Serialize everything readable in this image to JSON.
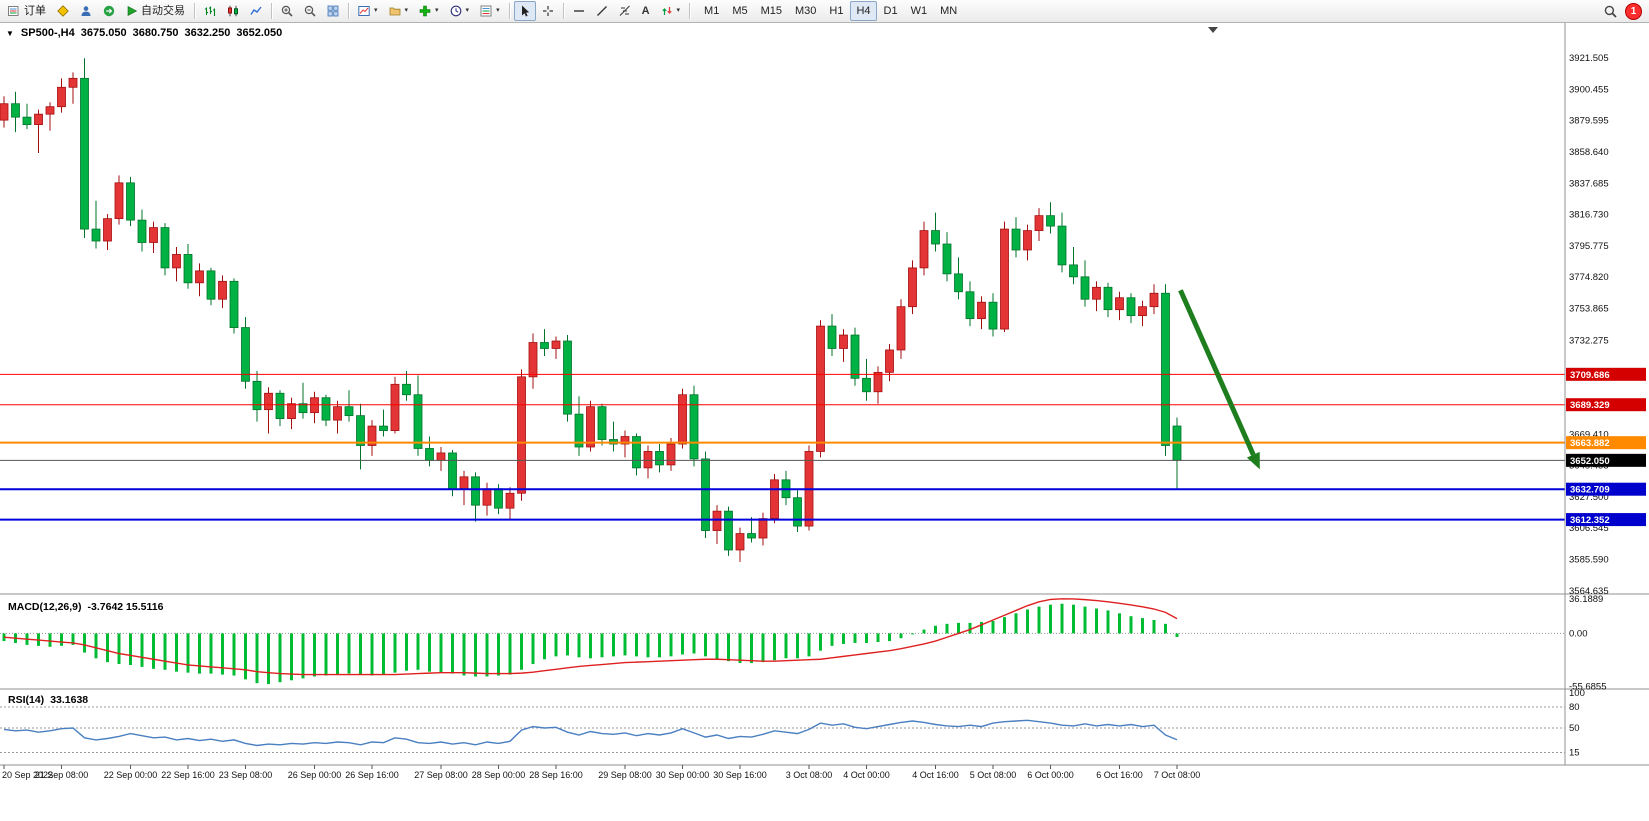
{
  "toolbar": {
    "new_order_label": "订单",
    "autotrading_label": "自动交易",
    "text_tool_label": "A",
    "timeframes": [
      "M1",
      "M5",
      "M15",
      "M30",
      "H1",
      "H4",
      "D1",
      "W1",
      "MN"
    ],
    "active_timeframe": "H4",
    "notification_count": "1"
  },
  "chart": {
    "symbol_period": "SP500-,H4",
    "open": "3675.050",
    "high": "3680.750",
    "low": "3632.250",
    "close": "3652.050"
  },
  "indicators": {
    "macd": {
      "label": "MACD(12,26,9)",
      "values": "-3.7642 15.5116",
      "axis_labels": [
        "36.1889",
        "0.00",
        "-55.6855"
      ],
      "axis_values": [
        36.1889,
        0,
        -55.6855
      ]
    },
    "rsi": {
      "label": "RSI(14)",
      "values": "33.1638",
      "axis_labels": [
        "100",
        "80",
        "50",
        "15"
      ],
      "axis_values": [
        100,
        80,
        50,
        15
      ]
    }
  },
  "colors": {
    "candle_up": "#e33535",
    "candle_up_stroke": "#a30f0f",
    "candle_down": "#00b244",
    "candle_down_stroke": "#00742b",
    "macd_histogram": "#00bc32",
    "macd_signal": "#e02020",
    "rsi_line": "#4a7fc1",
    "level_red": "#ff0000",
    "level_orange": "#ff8a00",
    "level_gray": "#555555",
    "level_blue": "#0000dd",
    "tag_red": "#d40000",
    "tag_orange": "#ff8a00",
    "tag_black": "#000000",
    "tag_blue": "#0000cc",
    "arrow_green": "#1e7e1e",
    "axis_border": "#909090",
    "axis_text": "#111111",
    "dashed_level": "#999999"
  },
  "chart_data": {
    "type": "candlestick",
    "symbol": "SP500-",
    "timeframe": "H4",
    "price_range": [
      3564.5,
      3929
    ],
    "candles": [
      [
        3880,
        3896,
        3875,
        3891
      ],
      [
        3891,
        3899,
        3872,
        3882
      ],
      [
        3882,
        3891,
        3874,
        3877
      ],
      [
        3877,
        3887,
        3858,
        3884
      ],
      [
        3884,
        3892,
        3873,
        3889
      ],
      [
        3889,
        3908,
        3885,
        3902
      ],
      [
        3902,
        3912,
        3891,
        3908
      ],
      [
        3908,
        3921.5,
        3801,
        3807
      ],
      [
        3807,
        3826,
        3794,
        3799
      ],
      [
        3799,
        3817,
        3793,
        3814
      ],
      [
        3814,
        3843,
        3810,
        3838
      ],
      [
        3838,
        3842,
        3809,
        3813
      ],
      [
        3813,
        3820,
        3792,
        3798
      ],
      [
        3798,
        3812,
        3791,
        3808
      ],
      [
        3808,
        3811,
        3776,
        3781
      ],
      [
        3781,
        3795,
        3772,
        3790
      ],
      [
        3790,
        3797,
        3767,
        3771
      ],
      [
        3771,
        3784,
        3762,
        3779
      ],
      [
        3779,
        3781,
        3756,
        3760
      ],
      [
        3760,
        3776,
        3754,
        3772
      ],
      [
        3772,
        3774,
        3737,
        3741
      ],
      [
        3741,
        3748,
        3700,
        3705
      ],
      [
        3705,
        3712,
        3678,
        3686
      ],
      [
        3686,
        3701,
        3670,
        3697
      ],
      [
        3697,
        3699,
        3675,
        3680
      ],
      [
        3680,
        3694,
        3673,
        3690
      ],
      [
        3690,
        3704,
        3680,
        3684
      ],
      [
        3684,
        3698,
        3677,
        3694
      ],
      [
        3694,
        3696,
        3675,
        3679
      ],
      [
        3679,
        3692,
        3670,
        3688
      ],
      [
        3688,
        3699,
        3678,
        3682
      ],
      [
        3682,
        3690,
        3646,
        3662
      ],
      [
        3662,
        3679,
        3655,
        3675
      ],
      [
        3675,
        3686,
        3668,
        3672
      ],
      [
        3672,
        3708,
        3670,
        3703
      ],
      [
        3703,
        3712,
        3692,
        3696
      ],
      [
        3696,
        3709,
        3655,
        3660
      ],
      [
        3660,
        3668,
        3648,
        3652
      ],
      [
        3652,
        3661,
        3645,
        3657
      ],
      [
        3657,
        3659,
        3628,
        3633
      ],
      [
        3633,
        3645,
        3622,
        3641
      ],
      [
        3641,
        3644,
        3611,
        3622
      ],
      [
        3622,
        3637,
        3615,
        3633
      ],
      [
        3633,
        3636,
        3616,
        3620
      ],
      [
        3620,
        3634,
        3612,
        3630
      ],
      [
        3630,
        3713,
        3625,
        3708
      ],
      [
        3708,
        3737,
        3700,
        3731
      ],
      [
        3731,
        3740,
        3722,
        3727
      ],
      [
        3727,
        3735,
        3720,
        3732
      ],
      [
        3732,
        3736,
        3678,
        3683
      ],
      [
        3683,
        3695,
        3655,
        3661
      ],
      [
        3661,
        3692,
        3658,
        3688
      ],
      [
        3688,
        3690,
        3662,
        3666
      ],
      [
        3666,
        3678,
        3658,
        3663
      ],
      [
        3663,
        3672,
        3654,
        3668
      ],
      [
        3668,
        3670,
        3642,
        3647
      ],
      [
        3647,
        3662,
        3640,
        3658
      ],
      [
        3658,
        3663,
        3644,
        3649
      ],
      [
        3649,
        3667,
        3645,
        3663
      ],
      [
        3663,
        3700,
        3660,
        3696
      ],
      [
        3696,
        3702,
        3648,
        3653
      ],
      [
        3653,
        3658,
        3600,
        3605
      ],
      [
        3605,
        3622,
        3596,
        3618
      ],
      [
        3618,
        3621,
        3588,
        3592
      ],
      [
        3592,
        3607,
        3584,
        3603
      ],
      [
        3603,
        3614,
        3597,
        3600
      ],
      [
        3600,
        3617,
        3595,
        3613
      ],
      [
        3613,
        3643,
        3610,
        3639
      ],
      [
        3639,
        3645,
        3622,
        3627
      ],
      [
        3627,
        3632,
        3604,
        3608
      ],
      [
        3608,
        3662,
        3605,
        3658
      ],
      [
        3658,
        3746,
        3654,
        3742
      ],
      [
        3742,
        3750,
        3722,
        3727
      ],
      [
        3727,
        3740,
        3718,
        3736
      ],
      [
        3736,
        3741,
        3702,
        3707
      ],
      [
        3707,
        3720,
        3692,
        3698
      ],
      [
        3698,
        3715,
        3690,
        3711
      ],
      [
        3711,
        3730,
        3705,
        3726
      ],
      [
        3726,
        3760,
        3720,
        3755
      ],
      [
        3755,
        3786,
        3750,
        3781
      ],
      [
        3781,
        3812,
        3776,
        3806
      ],
      [
        3806,
        3818,
        3792,
        3797
      ],
      [
        3797,
        3805,
        3772,
        3777
      ],
      [
        3777,
        3788,
        3760,
        3765
      ],
      [
        3765,
        3772,
        3742,
        3747
      ],
      [
        3747,
        3762,
        3740,
        3758
      ],
      [
        3758,
        3764,
        3735,
        3740
      ],
      [
        3740,
        3812,
        3738,
        3807
      ],
      [
        3807,
        3815,
        3788,
        3793
      ],
      [
        3793,
        3810,
        3786,
        3806
      ],
      [
        3806,
        3821,
        3799,
        3816
      ],
      [
        3816,
        3825,
        3804,
        3809
      ],
      [
        3809,
        3818,
        3778,
        3783
      ],
      [
        3783,
        3795,
        3770,
        3775
      ],
      [
        3775,
        3786,
        3755,
        3760
      ],
      [
        3760,
        3772,
        3752,
        3768
      ],
      [
        3768,
        3771,
        3748,
        3753
      ],
      [
        3753,
        3765,
        3746,
        3761
      ],
      [
        3761,
        3764,
        3744,
        3749
      ],
      [
        3749,
        3759,
        3742,
        3755
      ],
      [
        3755,
        3770,
        3750,
        3764
      ],
      [
        3764,
        3770,
        3655,
        3662
      ],
      [
        3675.05,
        3680.75,
        3632.25,
        3652.05
      ]
    ],
    "y_axis_labels": [
      "3921.505",
      "3900.455",
      "3879.595",
      "3858.640",
      "3837.685",
      "3816.730",
      "3795.775",
      "3774.820",
      "3753.865",
      "3732.275",
      "3669.410",
      "3648.455",
      "3627.500",
      "3606.545",
      "3585.590",
      "3564.635"
    ],
    "x_axis_labels": [
      "20 Sep 2022",
      "21 Sep 08:00",
      "22 Sep 00:00",
      "22 Sep 16:00",
      "23 Sep 08:00",
      "26 Sep 00:00",
      "26 Sep 16:00",
      "27 Sep 08:00",
      "28 Sep 00:00",
      "28 Sep 16:00",
      "29 Sep 08:00",
      "30 Sep 00:00",
      "30 Sep 16:00",
      "3 Oct 08:00",
      "4 Oct 00:00",
      "4 Oct 16:00",
      "5 Oct 08:00",
      "6 Oct 00:00",
      "6 Oct 16:00",
      "7 Oct 08:00"
    ],
    "levels": [
      {
        "price": 3709.686,
        "label": "3709.686",
        "line": "level_red",
        "tag": "tag_red",
        "width": 1
      },
      {
        "price": 3689.329,
        "label": "3689.329",
        "line": "level_red",
        "tag": "tag_red",
        "width": 1
      },
      {
        "price": 3663.882,
        "label": "3663.882",
        "line": "level_orange",
        "tag": "tag_orange",
        "width": 2
      },
      {
        "price": 3652.05,
        "label": "3652.050",
        "line": "level_gray",
        "tag": "tag_black",
        "width": 1
      },
      {
        "price": 3632.709,
        "label": "3632.709",
        "line": "level_blue",
        "tag": "tag_blue",
        "width": 2
      },
      {
        "price": 3612.352,
        "label": "3612.352",
        "line": "level_blue",
        "tag": "tag_blue",
        "width": 2
      }
    ],
    "arrow": {
      "i1": 102.3,
      "p1": 3766,
      "i2": 109.2,
      "p2": 3646
    },
    "macd": {
      "range": [
        -56,
        37
      ],
      "histogram": [
        -8,
        -10,
        -12,
        -13,
        -14,
        -13,
        -12,
        -20,
        -26,
        -30,
        -32,
        -33,
        -35,
        -37,
        -38,
        -40,
        -41,
        -42,
        -42,
        -43,
        -44,
        -48,
        -52,
        -53,
        -51,
        -49,
        -47,
        -45,
        -44,
        -43,
        -42,
        -43,
        -44,
        -43,
        -41,
        -39,
        -38,
        -40,
        -41,
        -42,
        -44,
        -45,
        -45,
        -44,
        -43,
        -38,
        -32,
        -27,
        -24,
        -23,
        -25,
        -26,
        -25,
        -24,
        -23,
        -24,
        -25,
        -25,
        -24,
        -22,
        -21,
        -24,
        -27,
        -29,
        -31,
        -31,
        -30,
        -28,
        -26,
        -26,
        -24,
        -18,
        -13,
        -11,
        -10,
        -10,
        -9,
        -8,
        -5,
        -1,
        4,
        8,
        10,
        11,
        11,
        12,
        13,
        17,
        21,
        25,
        28,
        30,
        31,
        30,
        28,
        26,
        24,
        21,
        18,
        16,
        14,
        10,
        -3.76
      ],
      "signal": [
        -4,
        -5,
        -6,
        -7,
        -8,
        -9,
        -10,
        -12,
        -15,
        -18,
        -21,
        -23,
        -25,
        -27,
        -29,
        -31,
        -33,
        -34,
        -35,
        -36,
        -37,
        -38,
        -40,
        -41,
        -42,
        -42.5,
        -43,
        -43,
        -43,
        -43,
        -43,
        -43,
        -43,
        -43,
        -43,
        -42.5,
        -42,
        -41.5,
        -41,
        -41,
        -41,
        -41.5,
        -42,
        -42,
        -42,
        -41.5,
        -40.5,
        -39,
        -37.5,
        -36,
        -34.5,
        -33.5,
        -32.5,
        -31.5,
        -30.5,
        -30,
        -29.5,
        -29,
        -28.5,
        -28,
        -27.5,
        -27,
        -27,
        -27.5,
        -28,
        -28.5,
        -29,
        -29,
        -28.5,
        -28,
        -27.5,
        -27,
        -25.5,
        -24,
        -22.5,
        -21,
        -19.5,
        -18,
        -16,
        -13.5,
        -11,
        -8,
        -4,
        0,
        4,
        9,
        14,
        19,
        24,
        29,
        33,
        35.5,
        36.2,
        36,
        35.3,
        34.3,
        33,
        31.5,
        29.8,
        27.8,
        25.5,
        22,
        15.5
      ]
    },
    "rsi": {
      "range": [
        0,
        100
      ],
      "levels": [
        80,
        50,
        15
      ],
      "values": [
        48,
        46,
        47,
        44,
        46,
        49,
        50,
        36,
        33,
        35,
        38,
        42,
        39,
        36,
        37,
        33,
        35,
        32,
        34,
        31,
        33,
        28,
        25,
        27,
        26,
        28,
        27,
        29,
        28,
        30,
        29,
        26,
        30,
        29,
        36,
        34,
        29,
        28,
        30,
        27,
        29,
        26,
        30,
        28,
        31,
        47,
        52,
        50,
        51,
        44,
        40,
        45,
        42,
        41,
        43,
        39,
        42,
        40,
        43,
        49,
        43,
        37,
        40,
        35,
        38,
        37,
        41,
        46,
        44,
        42,
        48,
        57,
        54,
        56,
        51,
        49,
        52,
        55,
        58,
        60,
        58,
        55,
        53,
        52,
        54,
        52,
        57,
        59,
        60,
        61,
        59,
        57,
        54,
        53,
        56,
        53,
        55,
        53,
        55,
        52,
        54,
        40,
        33.16
      ]
    }
  }
}
